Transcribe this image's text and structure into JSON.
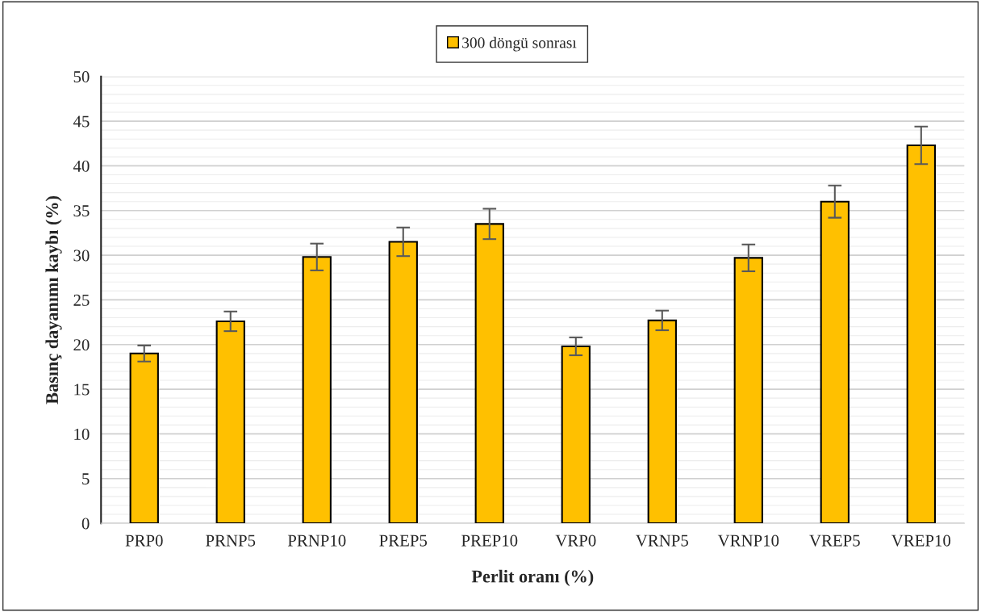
{
  "chart_data": {
    "type": "bar",
    "xlabel": "Perlit oranı (%)",
    "ylabel": "Basınç dayanımı kaybı (%)",
    "categories": [
      "PRP0",
      "PRNP5",
      "PRNP10",
      "PREP5",
      "PREP10",
      "VRP0",
      "VRNP5",
      "VRNP10",
      "VREP5",
      "VREP10"
    ],
    "series": [
      {
        "name": "300 döngü sonrası",
        "color": "#ffc000",
        "values": [
          19.0,
          22.6,
          29.8,
          31.5,
          33.5,
          19.8,
          22.7,
          29.7,
          36.0,
          42.3
        ],
        "errors": [
          0.9,
          1.1,
          1.5,
          1.6,
          1.7,
          1.0,
          1.1,
          1.5,
          1.8,
          2.1
        ]
      }
    ],
    "ylim": [
      0,
      50
    ],
    "yticks": [
      0,
      5,
      10,
      15,
      20,
      25,
      30,
      35,
      40,
      45,
      50
    ],
    "grid": "y",
    "legend": "top"
  }
}
